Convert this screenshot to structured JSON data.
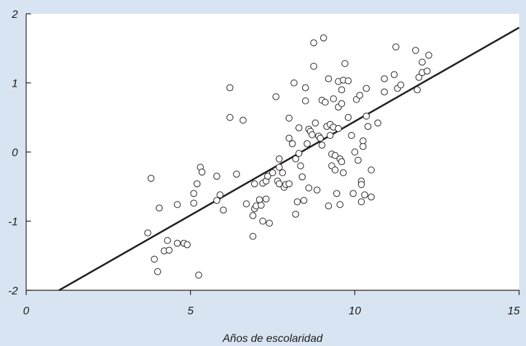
{
  "chart_data": {
    "type": "scatter",
    "title": "",
    "xlabel": "Años de escolaridad",
    "ylabel": "",
    "xlim": [
      0,
      15
    ],
    "ylim": [
      -2,
      2
    ],
    "x_ticks": [
      "0",
      "5",
      "10",
      "15"
    ],
    "y_ticks": [
      "-2",
      "-1",
      "0",
      "1",
      "2"
    ],
    "grid": false,
    "legend": "none",
    "colors": {
      "background": "#d8e4f1",
      "plot_area": "#ffffff",
      "line": "#231f20",
      "marker_edge": "#231f20",
      "marker_fill": "#ffffff"
    },
    "regression_line": {
      "x": [
        1,
        15
      ],
      "y": [
        -2.0,
        1.8
      ]
    },
    "points": [
      {
        "x": 3.7,
        "y": -1.17
      },
      {
        "x": 3.8,
        "y": -0.38
      },
      {
        "x": 3.9,
        "y": -1.55
      },
      {
        "x": 4.0,
        "y": -1.73
      },
      {
        "x": 4.05,
        "y": -0.81
      },
      {
        "x": 4.2,
        "y": -1.43
      },
      {
        "x": 4.3,
        "y": -1.28
      },
      {
        "x": 4.35,
        "y": -1.42
      },
      {
        "x": 4.6,
        "y": -1.32
      },
      {
        "x": 4.6,
        "y": -0.76
      },
      {
        "x": 4.8,
        "y": -1.32
      },
      {
        "x": 4.9,
        "y": -1.34
      },
      {
        "x": 5.1,
        "y": -0.74
      },
      {
        "x": 5.1,
        "y": -0.6
      },
      {
        "x": 5.2,
        "y": -0.46
      },
      {
        "x": 5.25,
        "y": -1.78
      },
      {
        "x": 5.3,
        "y": -0.22
      },
      {
        "x": 5.35,
        "y": -0.29
      },
      {
        "x": 5.8,
        "y": -0.7
      },
      {
        "x": 5.8,
        "y": -0.35
      },
      {
        "x": 5.9,
        "y": -0.62
      },
      {
        "x": 6.0,
        "y": -0.84
      },
      {
        "x": 6.2,
        "y": 0.93
      },
      {
        "x": 6.2,
        "y": 0.5
      },
      {
        "x": 6.4,
        "y": -0.32
      },
      {
        "x": 6.6,
        "y": 0.46
      },
      {
        "x": 6.7,
        "y": -0.75
      },
      {
        "x": 6.9,
        "y": -0.92
      },
      {
        "x": 6.9,
        "y": -1.22
      },
      {
        "x": 6.95,
        "y": -0.82
      },
      {
        "x": 6.95,
        "y": -0.46
      },
      {
        "x": 7.0,
        "y": -0.78
      },
      {
        "x": 7.1,
        "y": -0.69
      },
      {
        "x": 7.15,
        "y": -0.77
      },
      {
        "x": 7.2,
        "y": -0.45
      },
      {
        "x": 7.2,
        "y": -1.0
      },
      {
        "x": 7.3,
        "y": -0.68
      },
      {
        "x": 7.3,
        "y": -0.42
      },
      {
        "x": 7.35,
        "y": -0.35
      },
      {
        "x": 7.4,
        "y": -1.03
      },
      {
        "x": 7.5,
        "y": -0.3
      },
      {
        "x": 7.6,
        "y": 0.8
      },
      {
        "x": 7.65,
        "y": -0.42
      },
      {
        "x": 7.7,
        "y": -0.1
      },
      {
        "x": 7.7,
        "y": -0.46
      },
      {
        "x": 7.7,
        "y": -0.22
      },
      {
        "x": 7.8,
        "y": -0.3
      },
      {
        "x": 7.85,
        "y": -0.51
      },
      {
        "x": 7.9,
        "y": -0.47
      },
      {
        "x": 8.0,
        "y": 0.2
      },
      {
        "x": 8.0,
        "y": 0.49
      },
      {
        "x": 8.0,
        "y": -0.46
      },
      {
        "x": 8.1,
        "y": 0.12
      },
      {
        "x": 8.15,
        "y": 1.0
      },
      {
        "x": 8.2,
        "y": -0.1
      },
      {
        "x": 8.2,
        "y": -0.9
      },
      {
        "x": 8.25,
        "y": -0.72
      },
      {
        "x": 8.3,
        "y": 0.35
      },
      {
        "x": 8.3,
        "y": -0.02
      },
      {
        "x": 8.35,
        "y": -0.2
      },
      {
        "x": 8.4,
        "y": -0.36
      },
      {
        "x": 8.45,
        "y": -0.7
      },
      {
        "x": 8.5,
        "y": 0.93
      },
      {
        "x": 8.5,
        "y": 0.74
      },
      {
        "x": 8.55,
        "y": 0.12
      },
      {
        "x": 8.6,
        "y": 0.33
      },
      {
        "x": 8.6,
        "y": -0.52
      },
      {
        "x": 8.65,
        "y": 0.3
      },
      {
        "x": 8.7,
        "y": 0.25
      },
      {
        "x": 8.75,
        "y": 1.58
      },
      {
        "x": 8.75,
        "y": 1.24
      },
      {
        "x": 8.8,
        "y": 0.42
      },
      {
        "x": 8.85,
        "y": -0.55
      },
      {
        "x": 8.9,
        "y": 0.23
      },
      {
        "x": 8.95,
        "y": 0.2
      },
      {
        "x": 9.0,
        "y": 0.75
      },
      {
        "x": 9.0,
        "y": 0.1
      },
      {
        "x": 9.05,
        "y": 1.65
      },
      {
        "x": 9.1,
        "y": 0.72
      },
      {
        "x": 9.15,
        "y": 0.37
      },
      {
        "x": 9.2,
        "y": -0.78
      },
      {
        "x": 9.2,
        "y": 1.06
      },
      {
        "x": 9.25,
        "y": 0.24
      },
      {
        "x": 9.25,
        "y": 0.4
      },
      {
        "x": 9.3,
        "y": -0.03
      },
      {
        "x": 9.3,
        "y": -0.2
      },
      {
        "x": 9.35,
        "y": 0.77
      },
      {
        "x": 9.35,
        "y": 0.36
      },
      {
        "x": 9.4,
        "y": -0.05
      },
      {
        "x": 9.4,
        "y": -0.26
      },
      {
        "x": 9.45,
        "y": -0.6
      },
      {
        "x": 9.5,
        "y": 1.02
      },
      {
        "x": 9.5,
        "y": 0.65
      },
      {
        "x": 9.5,
        "y": 0.34
      },
      {
        "x": 9.55,
        "y": -0.1
      },
      {
        "x": 9.55,
        "y": -0.76
      },
      {
        "x": 9.6,
        "y": 0.9
      },
      {
        "x": 9.6,
        "y": 0.7
      },
      {
        "x": 9.6,
        "y": -0.14
      },
      {
        "x": 9.65,
        "y": -0.3
      },
      {
        "x": 9.65,
        "y": 1.04
      },
      {
        "x": 9.7,
        "y": 1.28
      },
      {
        "x": 9.8,
        "y": 1.03
      },
      {
        "x": 9.8,
        "y": 0.5
      },
      {
        "x": 9.9,
        "y": 0.24
      },
      {
        "x": 9.95,
        "y": -0.6
      },
      {
        "x": 10.0,
        "y": 0.0
      },
      {
        "x": 10.05,
        "y": 0.76
      },
      {
        "x": 10.1,
        "y": -0.12
      },
      {
        "x": 10.15,
        "y": 0.82
      },
      {
        "x": 10.2,
        "y": -0.42
      },
      {
        "x": 10.2,
        "y": -0.47
      },
      {
        "x": 10.2,
        "y": -0.72
      },
      {
        "x": 10.25,
        "y": 0.16
      },
      {
        "x": 10.25,
        "y": 0.08
      },
      {
        "x": 10.3,
        "y": -0.62
      },
      {
        "x": 10.35,
        "y": 0.52
      },
      {
        "x": 10.35,
        "y": 0.92
      },
      {
        "x": 10.4,
        "y": 0.37
      },
      {
        "x": 10.5,
        "y": -0.26
      },
      {
        "x": 10.5,
        "y": -0.65
      },
      {
        "x": 10.7,
        "y": 0.42
      },
      {
        "x": 10.9,
        "y": 1.06
      },
      {
        "x": 10.9,
        "y": 0.87
      },
      {
        "x": 11.2,
        "y": 1.12
      },
      {
        "x": 11.25,
        "y": 1.52
      },
      {
        "x": 11.3,
        "y": 0.92
      },
      {
        "x": 11.4,
        "y": 0.97
      },
      {
        "x": 11.85,
        "y": 1.47
      },
      {
        "x": 11.9,
        "y": 0.9
      },
      {
        "x": 11.95,
        "y": 1.08
      },
      {
        "x": 12.05,
        "y": 1.15
      },
      {
        "x": 12.05,
        "y": 1.3
      },
      {
        "x": 12.2,
        "y": 1.17
      },
      {
        "x": 12.25,
        "y": 1.4
      }
    ]
  }
}
